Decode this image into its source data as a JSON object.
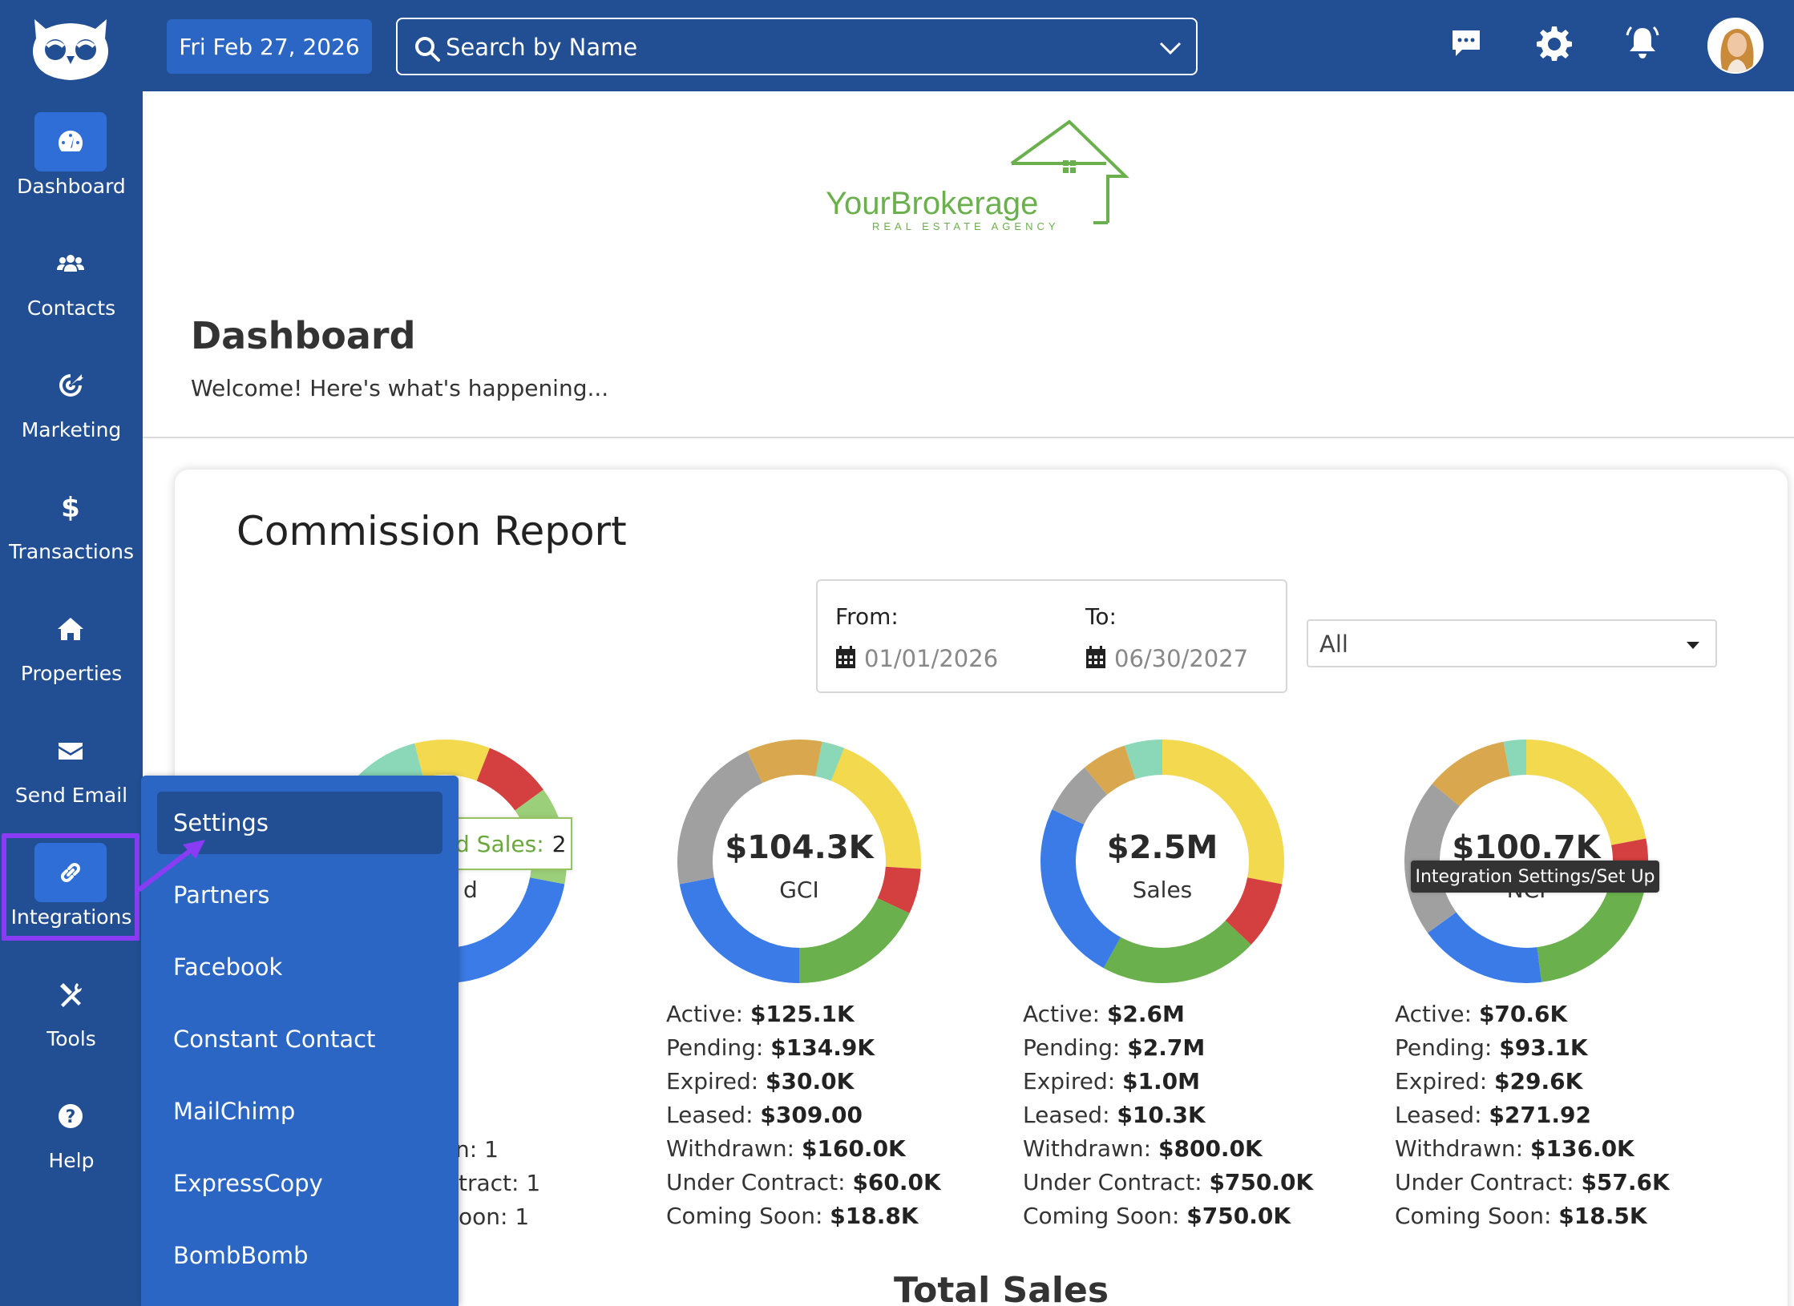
{
  "topbar": {
    "date": "Fri Feb 27, 2026",
    "search_placeholder": "Search by Name"
  },
  "sidebar": {
    "items": [
      {
        "label": "Dashboard",
        "icon": "dashboard-icon"
      },
      {
        "label": "Contacts",
        "icon": "users-icon"
      },
      {
        "label": "Marketing",
        "icon": "target-icon"
      },
      {
        "label": "Transactions",
        "icon": "dollar-icon"
      },
      {
        "label": "Properties",
        "icon": "home-icon"
      },
      {
        "label": "Send Email",
        "icon": "envelope-icon"
      },
      {
        "label": "Integrations",
        "icon": "link-icon"
      },
      {
        "label": "Tools",
        "icon": "tools-icon"
      },
      {
        "label": "Help",
        "icon": "help-icon"
      }
    ]
  },
  "brand": {
    "name": "YourBrokerage",
    "tagline": "REAL ESTATE AGENCY"
  },
  "page": {
    "title": "Dashboard",
    "subtitle": "Welcome! Here's what's happening..."
  },
  "report": {
    "title": "Commission Report",
    "from_label": "From:",
    "from_value": "01/01/2026",
    "to_label": "To:",
    "to_value": "06/30/2027",
    "filter_value": "All"
  },
  "flyout": {
    "items": [
      "Settings",
      "Partners",
      "Facebook",
      "Constant Contact",
      "MailChimp",
      "ExpressCopy",
      "BombBomb"
    ]
  },
  "tooltips": {
    "closed_sales_label": "d Sales:",
    "closed_sales_value": "2",
    "integration": "Integration Settings/Set Up"
  },
  "partial_first_card": {
    "donut_label_fragment": "d",
    "stat_fragments": [
      "n: 1",
      "tract: 1",
      "oon: 1"
    ]
  },
  "charts": {
    "gci": {
      "value": "$104.3K",
      "label": "GCI",
      "stats": [
        {
          "label": "Active:",
          "value": "$125.1K"
        },
        {
          "label": "Pending:",
          "value": "$134.9K"
        },
        {
          "label": "Expired:",
          "value": "$30.0K"
        },
        {
          "label": "Leased:",
          "value": "$309.00"
        },
        {
          "label": "Withdrawn:",
          "value": "$160.0K"
        },
        {
          "label": "Under Contract:",
          "value": "$60.0K"
        },
        {
          "label": "Coming Soon:",
          "value": "$18.8K"
        }
      ]
    },
    "sales": {
      "value": "$2.5M",
      "label": "Sales",
      "stats": [
        {
          "label": "Active:",
          "value": "$2.6M"
        },
        {
          "label": "Pending:",
          "value": "$2.7M"
        },
        {
          "label": "Expired:",
          "value": "$1.0M"
        },
        {
          "label": "Leased:",
          "value": "$10.3K"
        },
        {
          "label": "Withdrawn:",
          "value": "$800.0K"
        },
        {
          "label": "Under Contract:",
          "value": "$750.0K"
        },
        {
          "label": "Coming Soon:",
          "value": "$750.0K"
        }
      ]
    },
    "nci": {
      "value": "$100.7K",
      "label": "NCI",
      "stats": [
        {
          "label": "Active:",
          "value": "$70.6K"
        },
        {
          "label": "Pending:",
          "value": "$93.1K"
        },
        {
          "label": "Expired:",
          "value": "$29.6K"
        },
        {
          "label": "Leased:",
          "value": "$271.92"
        },
        {
          "label": "Withdrawn:",
          "value": "$136.0K"
        },
        {
          "label": "Under Contract:",
          "value": "$57.6K"
        },
        {
          "label": "Coming Soon:",
          "value": "$18.5K"
        }
      ]
    }
  },
  "section_below": "Total Sales",
  "colors": {
    "sidebar": "#224f93",
    "accent": "#2b66c4",
    "highlight": "#8a3cf5",
    "brand_green": "#6ab04c",
    "seg_yellow": "#f2d94e",
    "seg_red": "#d43f3f",
    "seg_green": "#6ab04c",
    "seg_blue": "#3a7be8",
    "seg_gray": "#a0a0a0",
    "seg_orange": "#d9a84e",
    "seg_teal": "#8ad8b8"
  }
}
